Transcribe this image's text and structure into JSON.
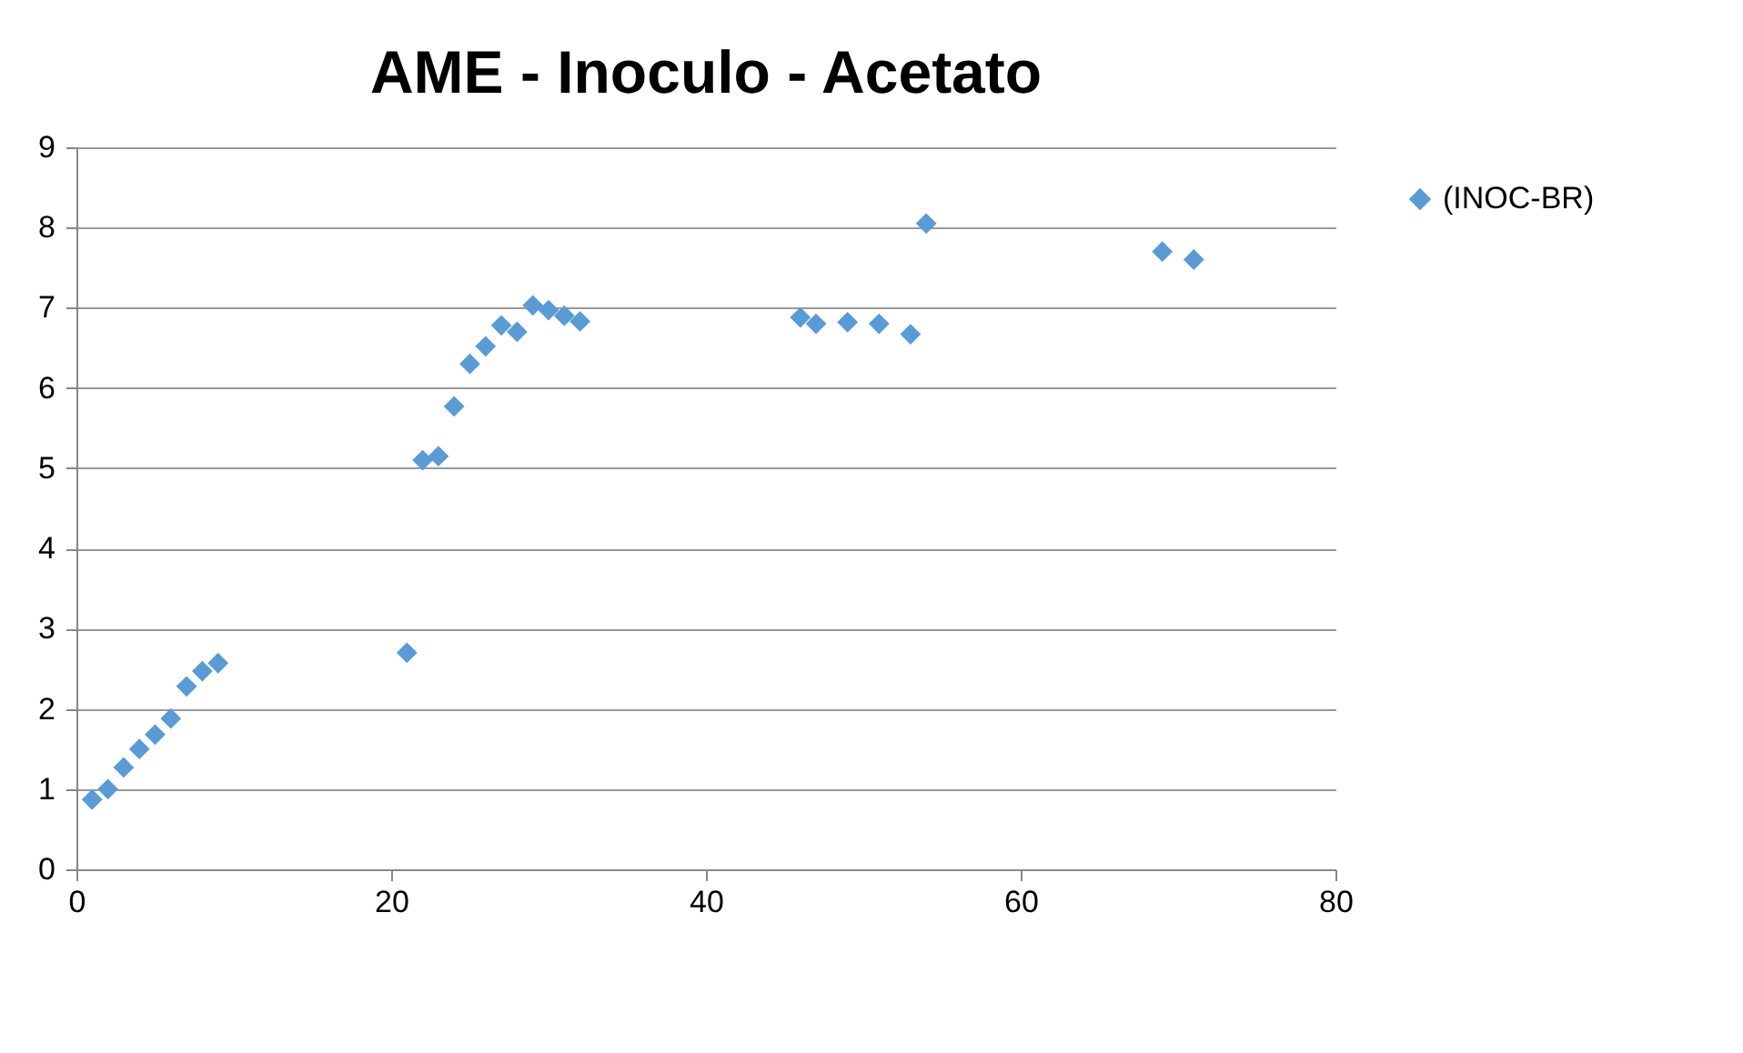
{
  "chart_data": {
    "type": "scatter",
    "title": "AME - Inoculo - Acetato",
    "x": [
      1,
      2,
      3,
      4,
      5,
      6,
      7,
      8,
      9,
      21,
      22,
      23,
      24,
      25,
      26,
      27,
      28,
      29,
      30,
      31,
      32,
      46,
      47,
      49,
      51,
      53,
      54,
      69,
      71
    ],
    "series": [
      {
        "name": "(INOC-BR)",
        "color": "#5b9bd5",
        "values": [
          0.87,
          1.0,
          1.27,
          1.5,
          1.68,
          1.88,
          2.28,
          2.47,
          2.57,
          2.7,
          5.1,
          5.15,
          5.77,
          6.3,
          6.52,
          6.78,
          6.7,
          7.03,
          6.97,
          6.9,
          6.83,
          6.88,
          6.8,
          6.82,
          6.8,
          6.67,
          8.05,
          7.7,
          7.6
        ]
      }
    ],
    "xlim": [
      0,
      80
    ],
    "xticks": [
      0,
      20,
      40,
      60,
      80
    ],
    "ylim": [
      0,
      9
    ],
    "yticks": [
      0,
      1,
      2,
      3,
      4,
      5,
      6,
      7,
      8,
      9
    ],
    "grid": "y",
    "legend": "right",
    "marker": "diamond"
  }
}
